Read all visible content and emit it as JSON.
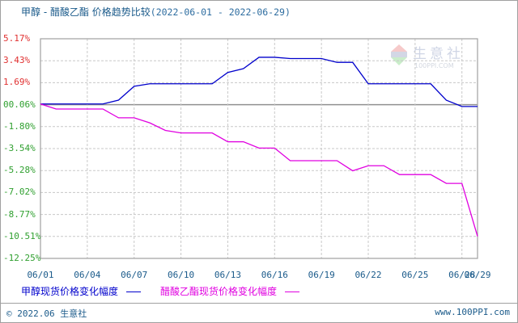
{
  "title": {
    "main": "甲醇 - 醋酸乙酯 价格趋势比较",
    "range": "(2022-06-01 - 2022-06-29)"
  },
  "legend": [
    {
      "label": "甲醇现货价格变化幅度",
      "color": "#0000cc"
    },
    {
      "label": "醋酸乙酯现货价格变化幅度",
      "color": "#e000e0"
    }
  ],
  "footer": {
    "copyright": "© 2022.06 生意社",
    "site": "www.100PPI.com"
  },
  "watermark": {
    "cn": "生意社",
    "en": "100PPI.COM",
    "logo_text": "PPI"
  },
  "colors": {
    "positive_tick": "#e03030",
    "negative_tick": "#30a030",
    "grid": "#c8c8c8",
    "axis": "#a0a0a0",
    "text_blue": "#1a5a8a"
  },
  "chart_data": {
    "type": "line",
    "title": "甲醇 - 醋酸乙酯 价格趋势比较(2022-06-01 - 2022-06-29)",
    "xlabel": "",
    "ylabel": "",
    "ylim": [
      -12.25,
      5.17
    ],
    "yticks": [
      "5.17%",
      "3.43%",
      "1.69%",
      "0.06%",
      "-1.80%",
      "-3.54%",
      "-5.28%",
      "-7.02%",
      "-8.77%",
      "-10.51%",
      "-12.25%"
    ],
    "xticks": [
      "06/01",
      "06/04",
      "06/07",
      "06/10",
      "06/13",
      "06/16",
      "06/19",
      "06/22",
      "06/25",
      "06/28",
      "06/29"
    ],
    "grid": true,
    "legend_position": "bottom",
    "x": [
      "06/01",
      "06/02",
      "06/03",
      "06/04",
      "06/05",
      "06/06",
      "06/07",
      "06/08",
      "06/09",
      "06/10",
      "06/11",
      "06/12",
      "06/13",
      "06/14",
      "06/15",
      "06/16",
      "06/17",
      "06/18",
      "06/19",
      "06/20",
      "06/21",
      "06/22",
      "06/23",
      "06/24",
      "06/25",
      "06/26",
      "06/27",
      "06/28",
      "06/29"
    ],
    "series": [
      {
        "name": "甲醇现货价格变化幅度",
        "color": "#0000cc",
        "values": [
          0.0,
          0.0,
          0.0,
          0.0,
          0.0,
          0.3,
          1.4,
          1.6,
          1.6,
          1.6,
          1.6,
          1.6,
          2.5,
          2.8,
          3.7,
          3.7,
          3.6,
          3.6,
          3.6,
          3.3,
          3.3,
          1.6,
          1.6,
          1.6,
          1.6,
          1.6,
          0.3,
          -0.2,
          -0.2
        ]
      },
      {
        "name": "醋酸乙酯现货价格变化幅度",
        "color": "#e000e0",
        "values": [
          0.0,
          -0.4,
          -0.4,
          -0.4,
          -0.4,
          -1.1,
          -1.1,
          -1.5,
          -2.1,
          -2.3,
          -2.3,
          -2.3,
          -3.0,
          -3.0,
          -3.5,
          -3.5,
          -4.5,
          -4.5,
          -4.5,
          -4.5,
          -5.3,
          -4.9,
          -4.9,
          -5.6,
          -5.6,
          -5.6,
          -6.3,
          -6.3,
          -10.5
        ]
      }
    ]
  }
}
